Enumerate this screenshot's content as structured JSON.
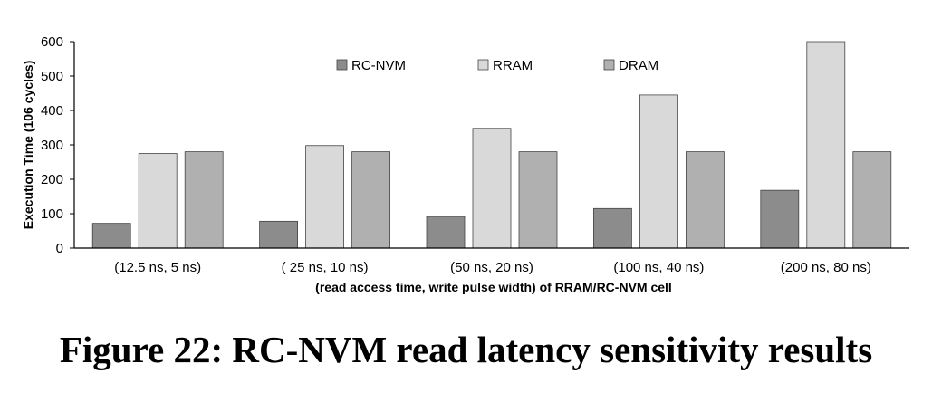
{
  "caption": "Figure 22: RC-NVM read latency sensitivity results",
  "chart_data": {
    "type": "bar",
    "categories": [
      "(12.5 ns, 5 ns)",
      "( 25 ns, 10 ns)",
      "(50 ns, 20 ns)",
      "(100 ns, 40 ns)",
      "(200 ns, 80 ns)"
    ],
    "series": [
      {
        "name": "RC-NVM",
        "color": "#8c8c8c",
        "values": [
          72,
          78,
          92,
          115,
          168
        ]
      },
      {
        "name": "RRAM",
        "color": "#d9d9d9",
        "values": [
          275,
          298,
          348,
          445,
          600
        ]
      },
      {
        "name": "DRAM",
        "color": "#b0b0b0",
        "values": [
          280,
          280,
          280,
          280,
          280
        ]
      }
    ],
    "xlabel": "(read access time, write pulse width) of RRAM/RC-NVM cell",
    "ylabel": "Execution Time (106 cycles)",
    "ylim": [
      0,
      600
    ],
    "yticks": [
      "0",
      "100",
      "200",
      "300",
      "400",
      "500",
      "600"
    ],
    "grid": false,
    "legend_position": "top-center"
  }
}
